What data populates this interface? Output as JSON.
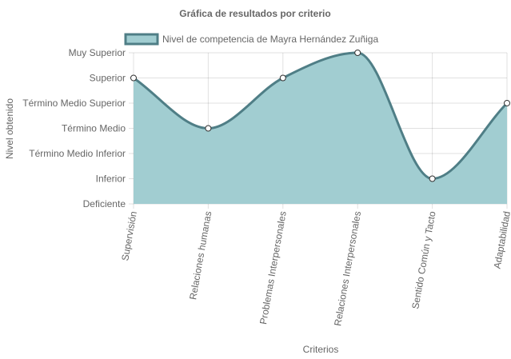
{
  "chart_data": {
    "type": "area",
    "title": "Gráfica de resultados por criterio",
    "xlabel": "Criterios",
    "ylabel": "Nivel obtenido",
    "categories": [
      "Supervisión",
      "Relaciones humanas",
      "Problemas Interpersonales",
      "Relaciones Interpersonales",
      "Sentido Común y Tacto",
      "Adaptabilidad"
    ],
    "y_levels": [
      "Deficiente",
      "Inferior",
      "Término Medio Inferior",
      "Término Medio",
      "Término Medio Superior",
      "Superior",
      "Muy Superior"
    ],
    "ylim": [
      0,
      6
    ],
    "grid": true,
    "legend_position": "top",
    "series": [
      {
        "name": "Nivel de competencia de Mayra Hernández Zuñiga",
        "values": [
          5,
          3,
          5,
          6,
          1,
          4
        ],
        "fill_color": "#a1cdd1",
        "line_color": "#4f7e86"
      }
    ]
  }
}
